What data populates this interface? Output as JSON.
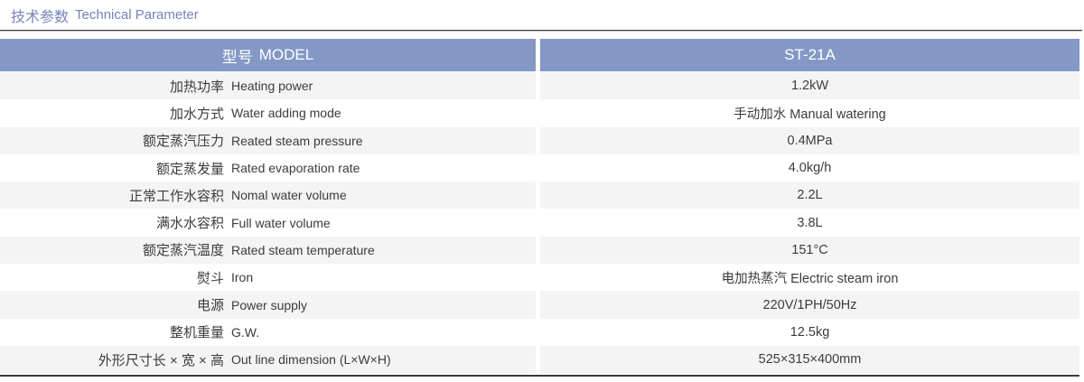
{
  "page": {
    "title_zh": "技术参数",
    "title_en": "Technical Parameter"
  },
  "table": {
    "header": {
      "label_zh": "型号",
      "label_en": "MODEL",
      "value": "ST-21A"
    },
    "rows": [
      {
        "label_zh": "加热功率",
        "label_en": "Heating power",
        "value": "1.2kW"
      },
      {
        "label_zh": "加水方式",
        "label_en": "Water adding mode",
        "value": "手动加水 Manual watering"
      },
      {
        "label_zh": "额定蒸汽压力",
        "label_en": "Reated steam pressure",
        "value": "0.4MPa"
      },
      {
        "label_zh": "额定蒸发量",
        "label_en": "Rated evaporation rate",
        "value": "4.0kg/h"
      },
      {
        "label_zh": "正常工作水容积",
        "label_en": "Nomal water volume",
        "value": "2.2L"
      },
      {
        "label_zh": "满水水容积",
        "label_en": "Full water volume",
        "value": "3.8L"
      },
      {
        "label_zh": "额定蒸汽温度",
        "label_en": "Rated steam temperature",
        "value": "151°C"
      },
      {
        "label_zh": "熨斗",
        "label_en": "Iron",
        "value": "电加热蒸汽 Electric steam iron"
      },
      {
        "label_zh": "电源",
        "label_en": "Power supply",
        "value": "220V/1PH/50Hz"
      },
      {
        "label_zh": "整机重量",
        "label_en": "G.W.",
        "value": "12.5kg"
      },
      {
        "label_zh": "外形尺寸长 × 宽 × 高",
        "label_en": "Out line dimension (L×W×H)",
        "value": "525×315×400mm"
      }
    ]
  },
  "colors": {
    "title-color": "#7384ba",
    "header-bg": "#8398c5",
    "header-text": "#ffffff",
    "row-shade": "#f4f4f5",
    "row-plain": "#ffffff",
    "text-color": "#3c3c3c",
    "rule-dark": "#3a3a3a",
    "rule-light": "#c9c9c9"
  }
}
